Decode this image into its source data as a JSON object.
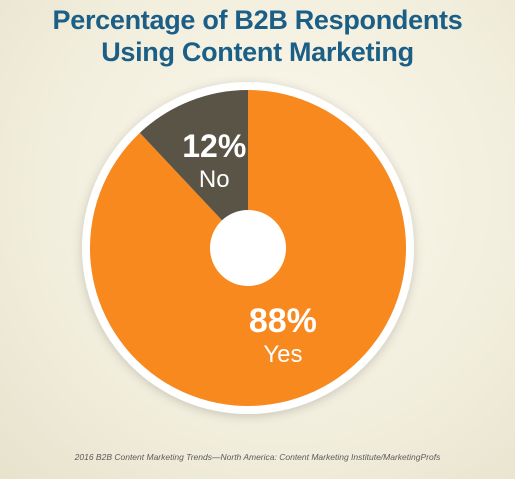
{
  "title": {
    "line1": "Percentage of B2B Respondents",
    "line2": "Using Content Marketing"
  },
  "source": "2016 B2B Content Marketing Trends—North America: Content Marketing Institute/MarketingProfs",
  "colors": {
    "title": "#1b5e86",
    "yes": "#f7891f",
    "no": "#5a5446",
    "ring": "#ffffff",
    "label": "#ffffff"
  },
  "chart_data": {
    "type": "pie",
    "donut": true,
    "title": "Percentage of B2B Respondents Using Content Marketing",
    "slices": [
      {
        "label": "Yes",
        "value": 88,
        "value_label": "88%",
        "color": "#f7891f"
      },
      {
        "label": "No",
        "value": 12,
        "value_label": "12%",
        "color": "#5a5446"
      }
    ],
    "legend": "none"
  }
}
